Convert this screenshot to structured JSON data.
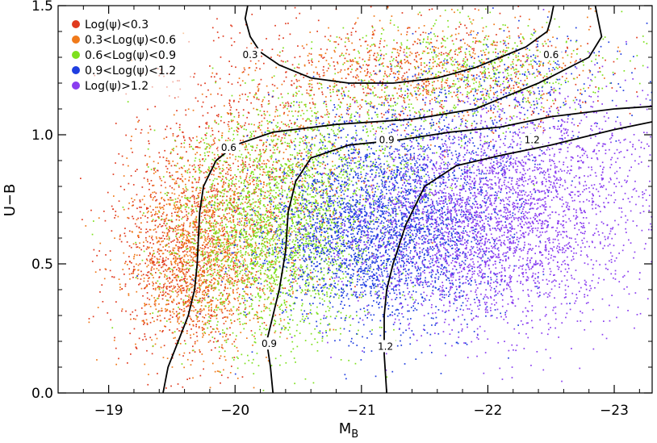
{
  "chart_data": {
    "type": "scatter",
    "title": "",
    "xlabel": "M",
    "xlabel_sub": "B",
    "ylabel": "U−B",
    "xlim": [
      -18.6,
      -23.3
    ],
    "ylim": [
      0.0,
      1.5
    ],
    "x_ticks": [
      -19,
      -20,
      -21,
      -22,
      -23
    ],
    "x_tick_labels": [
      "−19",
      "−20",
      "−21",
      "−22",
      "−23"
    ],
    "y_ticks": [
      0.0,
      0.5,
      1.0,
      1.5
    ],
    "y_tick_labels": [
      "0.0",
      "0.5",
      "1.0",
      "1.5"
    ],
    "legend_position": "top-left",
    "series": [
      {
        "name": "Log(ψ)<0.3",
        "color": "#e03a1e",
        "clusters": [
          {
            "x": -19.6,
            "y": 0.5,
            "sx": 0.28,
            "sy": 0.18,
            "n": 900
          },
          {
            "x": -20.0,
            "y": 0.85,
            "sx": 0.45,
            "sy": 0.22,
            "n": 700
          },
          {
            "x": -21.4,
            "y": 1.24,
            "sx": 0.75,
            "sy": 0.11,
            "n": 650
          }
        ]
      },
      {
        "name": "0.3<Log(ψ)<0.6",
        "color": "#f07a1a",
        "clusters": [
          {
            "x": -19.75,
            "y": 0.52,
            "sx": 0.3,
            "sy": 0.18,
            "n": 1300
          },
          {
            "x": -20.3,
            "y": 0.85,
            "sx": 0.45,
            "sy": 0.2,
            "n": 500
          },
          {
            "x": -21.6,
            "y": 1.27,
            "sx": 0.6,
            "sy": 0.1,
            "n": 500
          }
        ]
      },
      {
        "name": "0.6<Log(ψ)<0.9",
        "color": "#7ee01e",
        "clusters": [
          {
            "x": -20.3,
            "y": 0.6,
            "sx": 0.4,
            "sy": 0.2,
            "n": 2200
          },
          {
            "x": -20.8,
            "y": 0.95,
            "sx": 0.5,
            "sy": 0.15,
            "n": 600
          },
          {
            "x": -21.9,
            "y": 1.25,
            "sx": 0.55,
            "sy": 0.1,
            "n": 550
          }
        ]
      },
      {
        "name": "0.9<Log(ψ)<1.2",
        "color": "#1f3ee0",
        "clusters": [
          {
            "x": -21.15,
            "y": 0.62,
            "sx": 0.45,
            "sy": 0.18,
            "n": 2800
          },
          {
            "x": -21.5,
            "y": 0.95,
            "sx": 0.5,
            "sy": 0.15,
            "n": 500
          },
          {
            "x": -22.2,
            "y": 1.22,
            "sx": 0.5,
            "sy": 0.1,
            "n": 250
          }
        ]
      },
      {
        "name": "Log(ψ)>1.2",
        "color": "#8a3df0",
        "clusters": [
          {
            "x": -22.0,
            "y": 0.65,
            "sx": 0.55,
            "sy": 0.2,
            "n": 3000
          },
          {
            "x": -22.6,
            "y": 0.95,
            "sx": 0.45,
            "sy": 0.15,
            "n": 500
          }
        ]
      }
    ],
    "contours": [
      {
        "label": "0.3",
        "points": [
          [
            -20.1,
            1.5
          ],
          [
            -20.08,
            1.45
          ],
          [
            -20.12,
            1.38
          ],
          [
            -20.2,
            1.32
          ],
          [
            -20.35,
            1.27
          ],
          [
            -20.6,
            1.22
          ],
          [
            -20.9,
            1.2
          ],
          [
            -21.25,
            1.2
          ],
          [
            -21.6,
            1.22
          ],
          [
            -21.9,
            1.26
          ],
          [
            -22.1,
            1.3
          ],
          [
            -22.3,
            1.34
          ],
          [
            -22.47,
            1.4
          ],
          [
            -22.5,
            1.45
          ],
          [
            -22.52,
            1.5
          ]
        ],
        "label_at": [
          -20.12,
          1.31
        ]
      },
      {
        "label": "0.6",
        "points": [
          [
            -19.43,
            0.0
          ],
          [
            -19.47,
            0.1
          ],
          [
            -19.55,
            0.2
          ],
          [
            -19.63,
            0.3
          ],
          [
            -19.68,
            0.4
          ],
          [
            -19.7,
            0.5
          ],
          [
            -19.71,
            0.6
          ],
          [
            -19.72,
            0.7
          ],
          [
            -19.75,
            0.8
          ],
          [
            -19.85,
            0.9
          ],
          [
            -20.0,
            0.96
          ],
          [
            -20.3,
            1.01
          ],
          [
            -20.8,
            1.04
          ],
          [
            -21.4,
            1.06
          ],
          [
            -21.9,
            1.1
          ],
          [
            -22.4,
            1.2
          ],
          [
            -22.8,
            1.3
          ],
          [
            -22.9,
            1.38
          ],
          [
            -22.85,
            1.5
          ]
        ],
        "label_at": [
          -19.95,
          0.95
        ],
        "extra_label_at": [
          -22.5,
          1.31
        ]
      },
      {
        "label": "0.9",
        "points": [
          [
            -20.3,
            0.0
          ],
          [
            -20.28,
            0.1
          ],
          [
            -20.25,
            0.2
          ],
          [
            -20.3,
            0.3
          ],
          [
            -20.35,
            0.4
          ],
          [
            -20.4,
            0.55
          ],
          [
            -20.42,
            0.7
          ],
          [
            -20.48,
            0.82
          ],
          [
            -20.6,
            0.91
          ],
          [
            -20.9,
            0.96
          ],
          [
            -21.3,
            0.98
          ],
          [
            -21.7,
            1.01
          ],
          [
            -22.1,
            1.03
          ],
          [
            -22.5,
            1.07
          ],
          [
            -23.0,
            1.1
          ],
          [
            -23.3,
            1.11
          ]
        ],
        "label_at": [
          -21.2,
          0.98
        ],
        "extra_label_at": [
          -20.27,
          0.19
        ]
      },
      {
        "label": "1.2",
        "points": [
          [
            -21.2,
            0.0
          ],
          [
            -21.18,
            0.15
          ],
          [
            -21.18,
            0.3
          ],
          [
            -21.2,
            0.4
          ],
          [
            -21.25,
            0.5
          ],
          [
            -21.35,
            0.65
          ],
          [
            -21.5,
            0.8
          ],
          [
            -21.75,
            0.88
          ],
          [
            -22.1,
            0.92
          ],
          [
            -22.5,
            0.96
          ],
          [
            -23.0,
            1.02
          ],
          [
            -23.3,
            1.05
          ]
        ],
        "label_at": [
          -22.35,
          0.98
        ],
        "extra_label_at": [
          -21.19,
          0.18
        ]
      }
    ]
  }
}
